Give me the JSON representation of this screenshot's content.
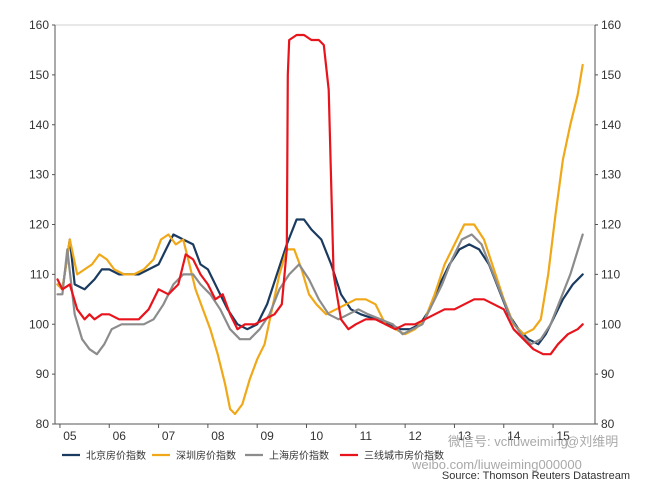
{
  "chart_data": {
    "type": "line",
    "title": "",
    "xlabel": "",
    "ylabel": "",
    "ylim": [
      80,
      160
    ],
    "y_ticks": [
      80,
      90,
      100,
      110,
      120,
      130,
      140,
      150,
      160
    ],
    "x_range": [
      2004.9,
      2015.85
    ],
    "x_ticks": [
      {
        "label": "05",
        "x": 2005.0
      },
      {
        "label": "06",
        "x": 2006.0
      },
      {
        "label": "07",
        "x": 2007.0
      },
      {
        "label": "08",
        "x": 2008.0
      },
      {
        "label": "09",
        "x": 2009.0
      },
      {
        "label": "10",
        "x": 2010.0
      },
      {
        "label": "11",
        "x": 2011.0
      },
      {
        "label": "12",
        "x": 2012.0
      },
      {
        "label": "13",
        "x": 2013.0
      },
      {
        "label": "14",
        "x": 2014.0
      },
      {
        "label": "15",
        "x": 2015.0
      }
    ],
    "grid": false,
    "secondary_y_axis": true,
    "legend_position": "bottom-left",
    "series": [
      {
        "name": "北京房价指数",
        "color": "#1a3a5f",
        "points": [
          [
            2004.95,
            108
          ],
          [
            2005.05,
            107
          ],
          [
            2005.2,
            117
          ],
          [
            2005.3,
            108
          ],
          [
            2005.5,
            107
          ],
          [
            2005.7,
            109
          ],
          [
            2005.85,
            111
          ],
          [
            2006.0,
            111
          ],
          [
            2006.2,
            110
          ],
          [
            2006.6,
            110
          ],
          [
            2006.8,
            111
          ],
          [
            2007.0,
            112
          ],
          [
            2007.15,
            115
          ],
          [
            2007.3,
            118
          ],
          [
            2007.5,
            117
          ],
          [
            2007.7,
            116
          ],
          [
            2007.85,
            112
          ],
          [
            2008.0,
            111
          ],
          [
            2008.2,
            107
          ],
          [
            2008.4,
            103
          ],
          [
            2008.6,
            100
          ],
          [
            2008.8,
            99
          ],
          [
            2009.0,
            100
          ],
          [
            2009.2,
            104
          ],
          [
            2009.4,
            110
          ],
          [
            2009.6,
            116
          ],
          [
            2009.8,
            121
          ],
          [
            2009.95,
            121
          ],
          [
            2010.1,
            119
          ],
          [
            2010.3,
            117
          ],
          [
            2010.5,
            112
          ],
          [
            2010.7,
            106
          ],
          [
            2010.9,
            103
          ],
          [
            2011.1,
            102
          ],
          [
            2011.4,
            101
          ],
          [
            2011.7,
            100
          ],
          [
            2011.9,
            99
          ],
          [
            2012.1,
            99
          ],
          [
            2012.3,
            100
          ],
          [
            2012.5,
            103
          ],
          [
            2012.7,
            108
          ],
          [
            2012.9,
            112
          ],
          [
            2013.1,
            115
          ],
          [
            2013.3,
            116
          ],
          [
            2013.5,
            115
          ],
          [
            2013.7,
            112
          ],
          [
            2013.9,
            107
          ],
          [
            2014.1,
            102
          ],
          [
            2014.3,
            99
          ],
          [
            2014.5,
            97
          ],
          [
            2014.7,
            96
          ],
          [
            2014.85,
            98
          ],
          [
            2015.0,
            101
          ],
          [
            2015.2,
            105
          ],
          [
            2015.4,
            108
          ],
          [
            2015.6,
            110
          ]
        ]
      },
      {
        "name": "深圳房价指数",
        "color": "#f0a818",
        "points": [
          [
            2004.95,
            108
          ],
          [
            2005.05,
            107
          ],
          [
            2005.2,
            117
          ],
          [
            2005.35,
            110
          ],
          [
            2005.5,
            111
          ],
          [
            2005.65,
            112
          ],
          [
            2005.8,
            114
          ],
          [
            2005.95,
            113
          ],
          [
            2006.1,
            111
          ],
          [
            2006.3,
            110
          ],
          [
            2006.5,
            110
          ],
          [
            2006.7,
            111
          ],
          [
            2006.9,
            113
          ],
          [
            2007.05,
            117
          ],
          [
            2007.2,
            118
          ],
          [
            2007.35,
            116
          ],
          [
            2007.5,
            117
          ],
          [
            2007.6,
            113
          ],
          [
            2007.75,
            107
          ],
          [
            2007.9,
            103
          ],
          [
            2008.05,
            99
          ],
          [
            2008.2,
            94
          ],
          [
            2008.35,
            88
          ],
          [
            2008.45,
            83
          ],
          [
            2008.55,
            82
          ],
          [
            2008.7,
            84
          ],
          [
            2008.85,
            89
          ],
          [
            2009.0,
            93
          ],
          [
            2009.15,
            96
          ],
          [
            2009.3,
            103
          ],
          [
            2009.45,
            110
          ],
          [
            2009.6,
            115
          ],
          [
            2009.75,
            115
          ],
          [
            2009.9,
            111
          ],
          [
            2010.05,
            106
          ],
          [
            2010.2,
            104
          ],
          [
            2010.4,
            102
          ],
          [
            2010.6,
            103
          ],
          [
            2010.8,
            104
          ],
          [
            2011.0,
            105
          ],
          [
            2011.2,
            105
          ],
          [
            2011.4,
            104
          ],
          [
            2011.6,
            100
          ],
          [
            2011.8,
            99
          ],
          [
            2012.0,
            98
          ],
          [
            2012.2,
            99
          ],
          [
            2012.4,
            101
          ],
          [
            2012.6,
            106
          ],
          [
            2012.8,
            112
          ],
          [
            2013.0,
            116
          ],
          [
            2013.2,
            120
          ],
          [
            2013.4,
            120
          ],
          [
            2013.6,
            117
          ],
          [
            2013.8,
            111
          ],
          [
            2014.0,
            105
          ],
          [
            2014.2,
            100
          ],
          [
            2014.4,
            98
          ],
          [
            2014.6,
            99
          ],
          [
            2014.75,
            101
          ],
          [
            2014.9,
            110
          ],
          [
            2015.05,
            122
          ],
          [
            2015.2,
            133
          ],
          [
            2015.35,
            140
          ],
          [
            2015.5,
            146
          ],
          [
            2015.6,
            152
          ]
        ]
      },
      {
        "name": "上海房价指数",
        "color": "#8c8c8c",
        "points": [
          [
            2004.95,
            106
          ],
          [
            2005.05,
            106
          ],
          [
            2005.15,
            115
          ],
          [
            2005.3,
            102
          ],
          [
            2005.45,
            97
          ],
          [
            2005.6,
            95
          ],
          [
            2005.75,
            94
          ],
          [
            2005.9,
            96
          ],
          [
            2006.05,
            99
          ],
          [
            2006.25,
            100
          ],
          [
            2006.5,
            100
          ],
          [
            2006.7,
            100
          ],
          [
            2006.9,
            101
          ],
          [
            2007.1,
            104
          ],
          [
            2007.3,
            108
          ],
          [
            2007.5,
            110
          ],
          [
            2007.7,
            110
          ],
          [
            2007.85,
            108
          ],
          [
            2008.05,
            106
          ],
          [
            2008.25,
            103
          ],
          [
            2008.45,
            99
          ],
          [
            2008.65,
            97
          ],
          [
            2008.85,
            97
          ],
          [
            2009.05,
            99
          ],
          [
            2009.25,
            102
          ],
          [
            2009.45,
            107
          ],
          [
            2009.65,
            110
          ],
          [
            2009.85,
            112
          ],
          [
            2010.05,
            109
          ],
          [
            2010.25,
            105
          ],
          [
            2010.45,
            102
          ],
          [
            2010.65,
            101
          ],
          [
            2010.85,
            102
          ],
          [
            2011.05,
            103
          ],
          [
            2011.25,
            102
          ],
          [
            2011.5,
            101
          ],
          [
            2011.75,
            100
          ],
          [
            2011.95,
            98
          ],
          [
            2012.15,
            99
          ],
          [
            2012.35,
            100
          ],
          [
            2012.55,
            104
          ],
          [
            2012.75,
            108
          ],
          [
            2012.95,
            113
          ],
          [
            2013.15,
            117
          ],
          [
            2013.35,
            118
          ],
          [
            2013.55,
            116
          ],
          [
            2013.75,
            111
          ],
          [
            2013.95,
            106
          ],
          [
            2014.15,
            101
          ],
          [
            2014.35,
            98
          ],
          [
            2014.55,
            96
          ],
          [
            2014.75,
            97
          ],
          [
            2014.95,
            100
          ],
          [
            2015.15,
            105
          ],
          [
            2015.35,
            110
          ],
          [
            2015.6,
            118
          ]
        ]
      },
      {
        "name": "三线城市房价指数",
        "color": "#e8141c",
        "points": [
          [
            2004.95,
            109
          ],
          [
            2005.05,
            107
          ],
          [
            2005.2,
            108
          ],
          [
            2005.35,
            103
          ],
          [
            2005.5,
            101
          ],
          [
            2005.6,
            102
          ],
          [
            2005.7,
            101
          ],
          [
            2005.85,
            102
          ],
          [
            2006.0,
            102
          ],
          [
            2006.2,
            101
          ],
          [
            2006.4,
            101
          ],
          [
            2006.6,
            101
          ],
          [
            2006.8,
            103
          ],
          [
            2007.0,
            107
          ],
          [
            2007.2,
            106
          ],
          [
            2007.4,
            108
          ],
          [
            2007.55,
            114
          ],
          [
            2007.7,
            113
          ],
          [
            2007.85,
            110
          ],
          [
            2008.0,
            108
          ],
          [
            2008.15,
            105
          ],
          [
            2008.3,
            106
          ],
          [
            2008.45,
            102
          ],
          [
            2008.6,
            99
          ],
          [
            2008.75,
            100
          ],
          [
            2008.95,
            100
          ],
          [
            2009.15,
            101
          ],
          [
            2009.35,
            102
          ],
          [
            2009.5,
            104
          ],
          [
            2009.6,
            115
          ],
          [
            2009.62,
            150
          ],
          [
            2009.65,
            157
          ],
          [
            2009.8,
            158
          ],
          [
            2009.95,
            158
          ],
          [
            2010.1,
            157
          ],
          [
            2010.25,
            157
          ],
          [
            2010.35,
            156
          ],
          [
            2010.45,
            147
          ],
          [
            2010.55,
            110
          ],
          [
            2010.7,
            101
          ],
          [
            2010.85,
            99
          ],
          [
            2011.0,
            100
          ],
          [
            2011.2,
            101
          ],
          [
            2011.4,
            101
          ],
          [
            2011.6,
            100
          ],
          [
            2011.8,
            99
          ],
          [
            2012.0,
            100
          ],
          [
            2012.2,
            100
          ],
          [
            2012.4,
            101
          ],
          [
            2012.6,
            102
          ],
          [
            2012.8,
            103
          ],
          [
            2013.0,
            103
          ],
          [
            2013.2,
            104
          ],
          [
            2013.4,
            105
          ],
          [
            2013.6,
            105
          ],
          [
            2013.8,
            104
          ],
          [
            2014.0,
            103
          ],
          [
            2014.2,
            99
          ],
          [
            2014.4,
            97
          ],
          [
            2014.6,
            95
          ],
          [
            2014.8,
            94
          ],
          [
            2014.95,
            94
          ],
          [
            2015.1,
            96
          ],
          [
            2015.3,
            98
          ],
          [
            2015.5,
            99
          ],
          [
            2015.6,
            100
          ]
        ]
      }
    ],
    "annotations": {
      "source": "Source: Thomson Reuters Datastream",
      "watermark_1": "微信号: vcliuweiming",
      "watermark_2": "@刘维明",
      "watermark_3": "weibo.com/liuweiming000000"
    }
  }
}
